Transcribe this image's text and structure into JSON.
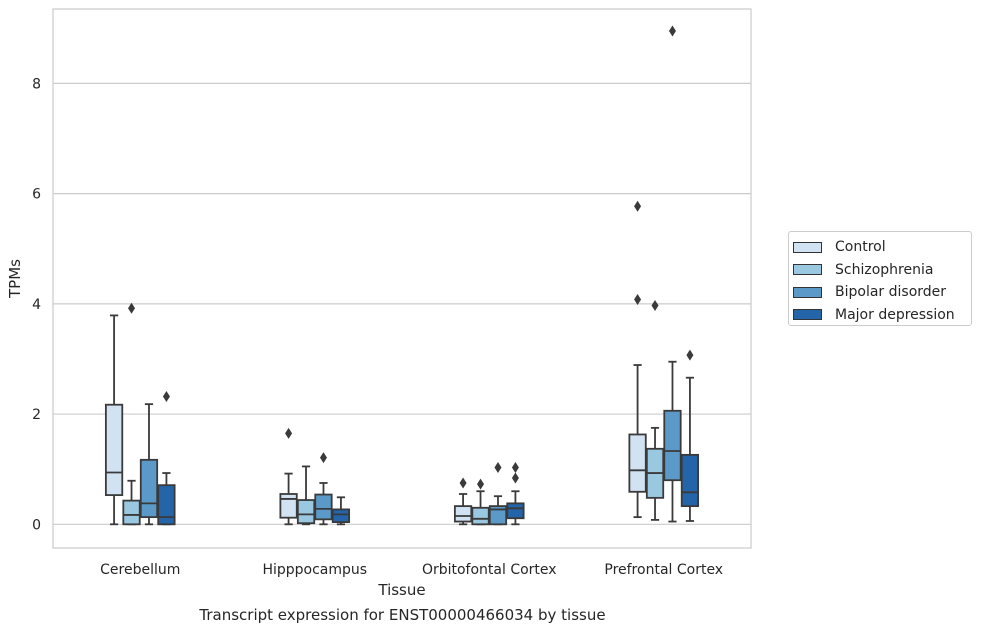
{
  "chart_data": {
    "type": "box",
    "ylabel": "TPMs",
    "xlabel": "Tissue",
    "ylim": [
      -0.43,
      9.35
    ],
    "yticks": [
      0,
      2,
      4,
      6,
      8
    ],
    "categories": [
      "Cerebellum",
      "Hipppocampus",
      "Orbitofontal Cortex",
      "Prefrontal Cortex"
    ],
    "grid": "horizontal",
    "legend_position": "right",
    "series": [
      {
        "name": "Control",
        "color": "#d1e2f2",
        "boxes": [
          {
            "q1": 0.53,
            "median": 0.94,
            "q3": 2.17,
            "whisker_low": 0.0,
            "whisker_high": 3.79,
            "outliers": []
          },
          {
            "q1": 0.12,
            "median": 0.46,
            "q3": 0.55,
            "whisker_low": 0.0,
            "whisker_high": 0.92,
            "outliers": [
              1.65
            ]
          },
          {
            "q1": 0.05,
            "median": 0.15,
            "q3": 0.33,
            "whisker_low": 0.0,
            "whisker_high": 0.55,
            "outliers": [
              0.75
            ]
          },
          {
            "q1": 0.59,
            "median": 0.98,
            "q3": 1.63,
            "whisker_low": 0.13,
            "whisker_high": 2.89,
            "outliers": [
              4.08,
              5.77
            ]
          }
        ]
      },
      {
        "name": "Schizophrenia",
        "color": "#9ac8e0",
        "boxes": [
          {
            "q1": 0.0,
            "median": 0.17,
            "q3": 0.43,
            "whisker_low": 0.0,
            "whisker_high": 0.79,
            "outliers": [
              3.92
            ]
          },
          {
            "q1": 0.02,
            "median": 0.18,
            "q3": 0.44,
            "whisker_low": 0.0,
            "whisker_high": 1.05,
            "outliers": []
          },
          {
            "q1": 0.0,
            "median": 0.1,
            "q3": 0.3,
            "whisker_low": 0.0,
            "whisker_high": 0.6,
            "outliers": [
              0.73
            ]
          },
          {
            "q1": 0.48,
            "median": 0.93,
            "q3": 1.37,
            "whisker_low": 0.08,
            "whisker_high": 1.75,
            "outliers": [
              3.97
            ]
          }
        ]
      },
      {
        "name": "Bipolar disorder",
        "color": "#5b9ac8",
        "boxes": [
          {
            "q1": 0.13,
            "median": 0.38,
            "q3": 1.17,
            "whisker_low": 0.0,
            "whisker_high": 2.18,
            "outliers": []
          },
          {
            "q1": 0.09,
            "median": 0.28,
            "q3": 0.54,
            "whisker_low": 0.0,
            "whisker_high": 0.75,
            "outliers": [
              1.21
            ]
          },
          {
            "q1": 0.0,
            "median": 0.27,
            "q3": 0.33,
            "whisker_low": 0.0,
            "whisker_high": 0.51,
            "outliers": [
              1.03
            ]
          },
          {
            "q1": 0.8,
            "median": 1.33,
            "q3": 2.06,
            "whisker_low": 0.05,
            "whisker_high": 2.95,
            "outliers": [
              8.95
            ]
          }
        ]
      },
      {
        "name": "Major depression",
        "color": "#2464a9",
        "boxes": [
          {
            "q1": 0.0,
            "median": 0.13,
            "q3": 0.71,
            "whisker_low": 0.0,
            "whisker_high": 0.93,
            "outliers": [
              2.32
            ]
          },
          {
            "q1": 0.04,
            "median": 0.18,
            "q3": 0.27,
            "whisker_low": 0.0,
            "whisker_high": 0.49,
            "outliers": []
          },
          {
            "q1": 0.11,
            "median": 0.29,
            "q3": 0.38,
            "whisker_low": 0.0,
            "whisker_high": 0.6,
            "outliers": [
              0.84,
              1.03
            ]
          },
          {
            "q1": 0.33,
            "median": 0.58,
            "q3": 1.26,
            "whisker_low": 0.06,
            "whisker_high": 2.66,
            "outliers": [
              3.07
            ]
          }
        ]
      }
    ]
  },
  "caption": "Transcript expression for ENST00000466034 by tissue"
}
